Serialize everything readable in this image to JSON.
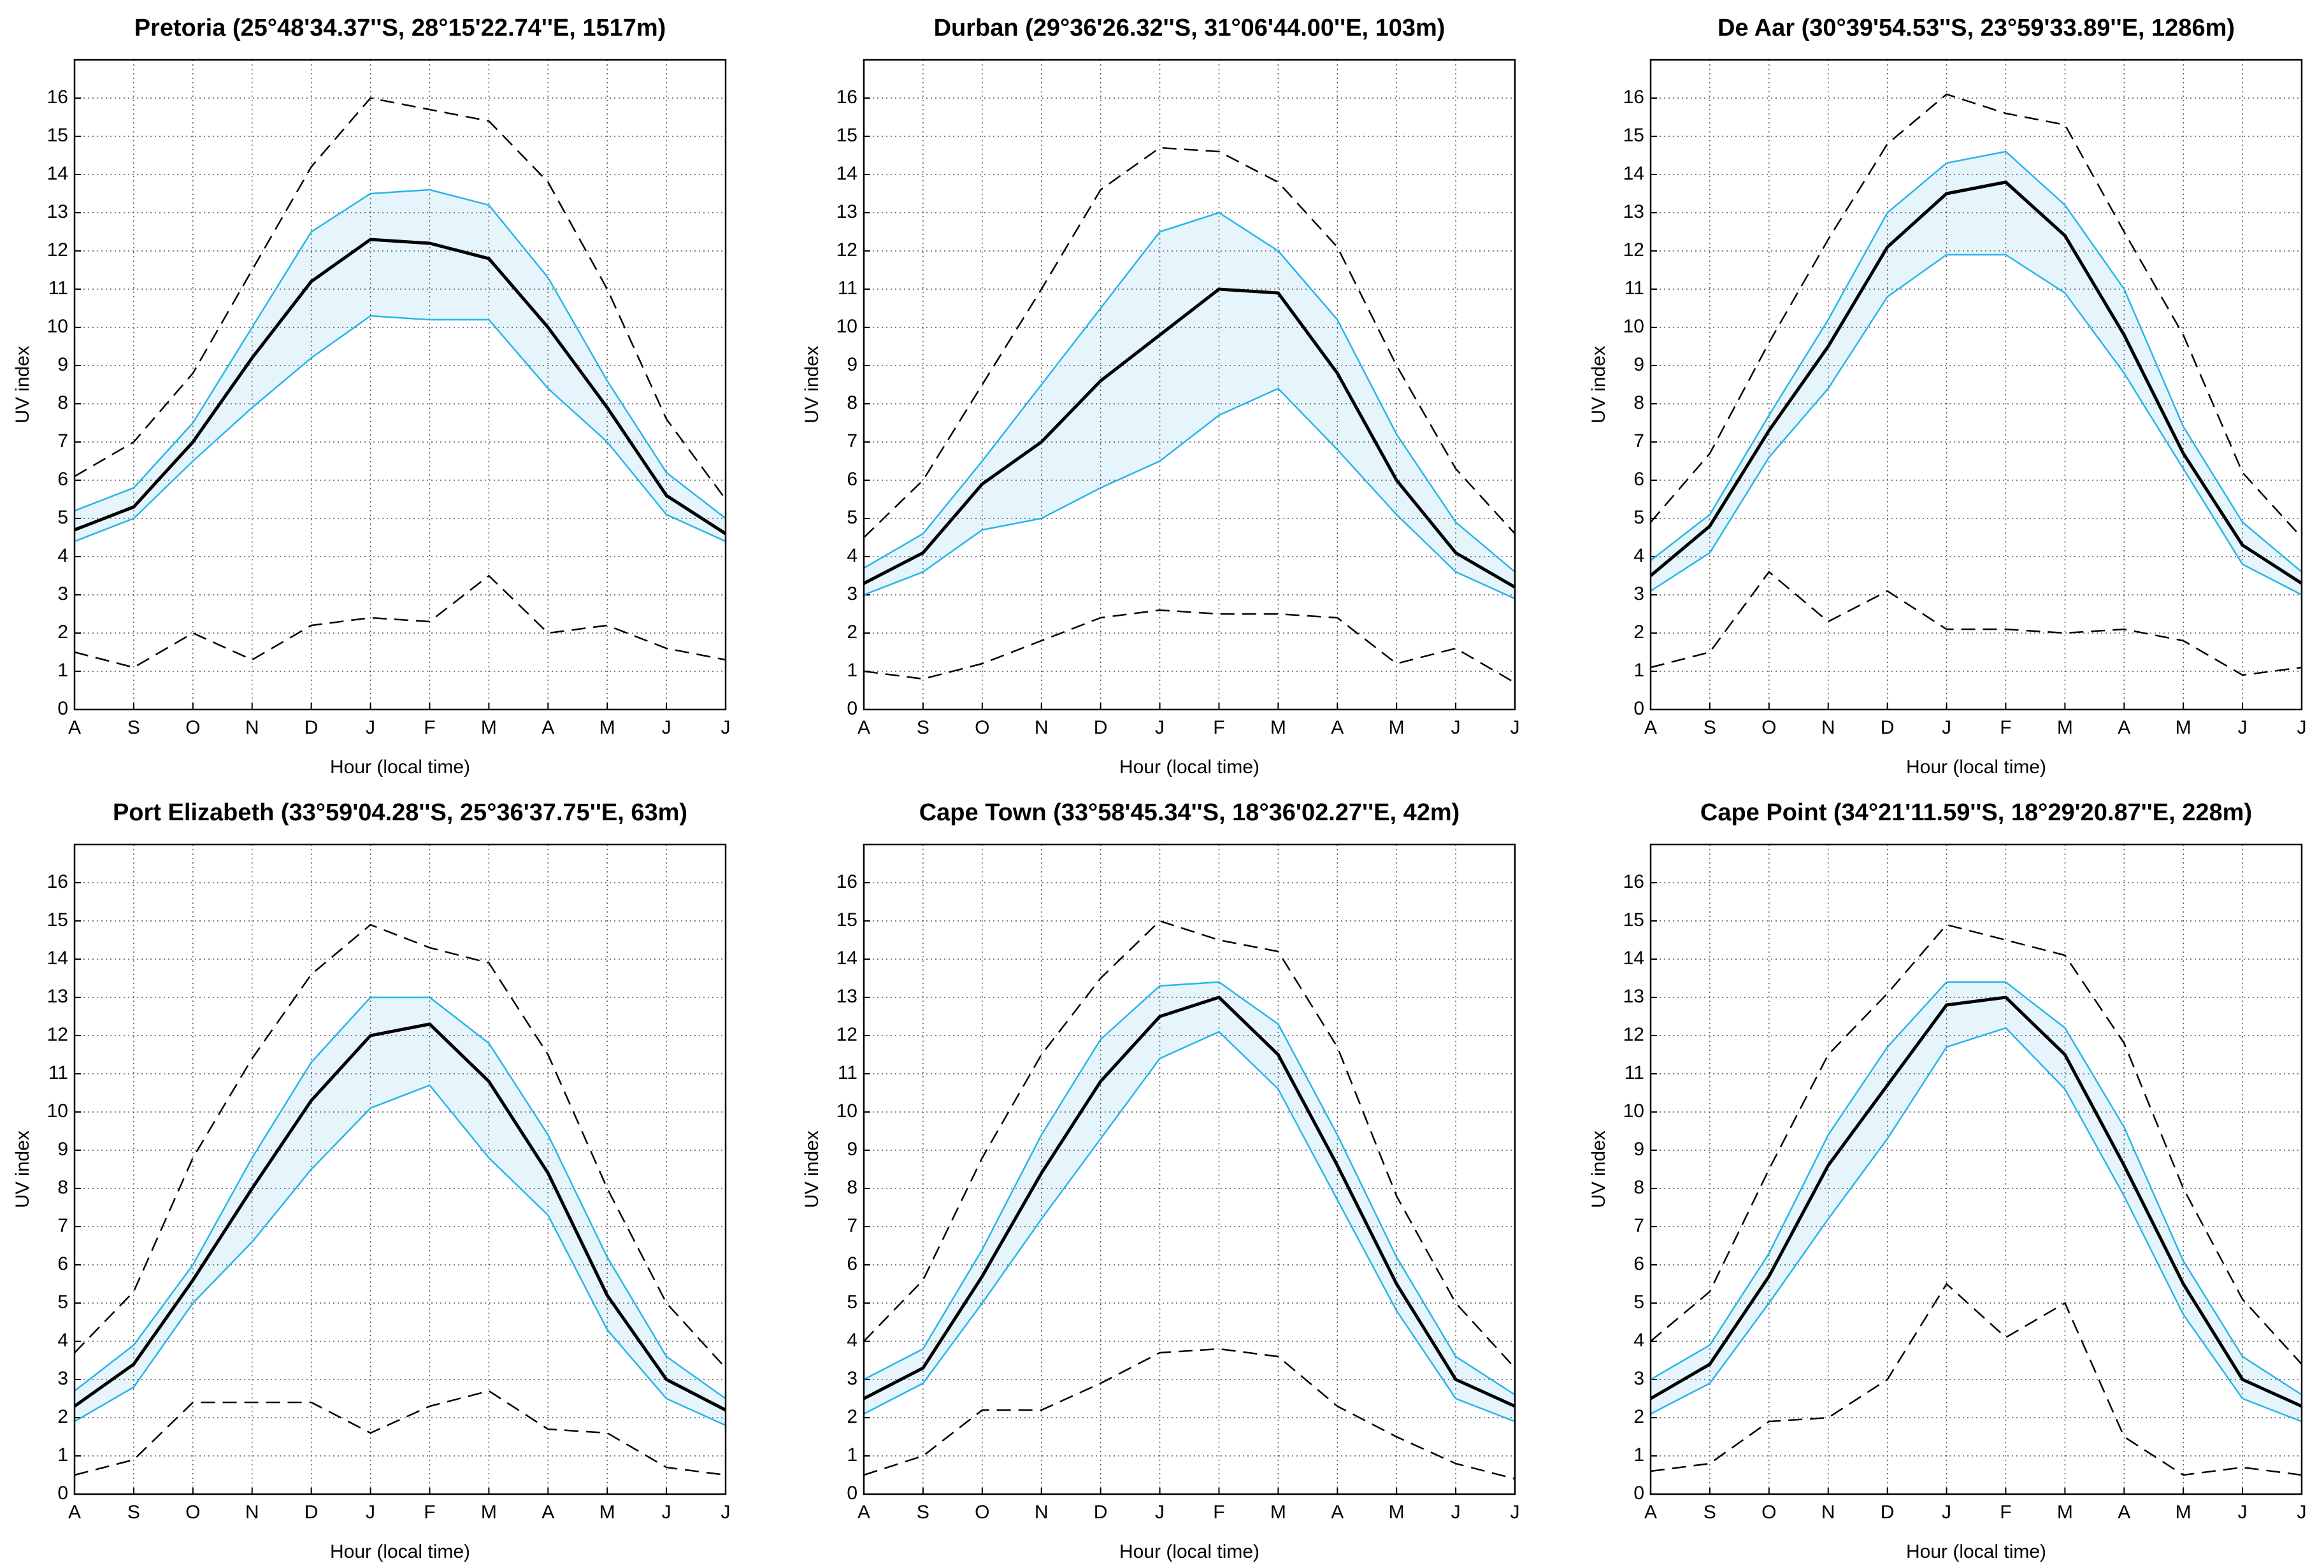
{
  "chart_data": [
    {
      "type": "line",
      "title": "Pretoria (25°48'34.37''S, 28°15'22.74''E, 1517m)",
      "x_label": "Hour (local time)",
      "y_label": "UV index",
      "categories": [
        "A",
        "S",
        "O",
        "N",
        "D",
        "J",
        "F",
        "M",
        "A",
        "M",
        "J",
        "J"
      ],
      "ylim": [
        0,
        17
      ],
      "yticks": [
        0,
        1,
        2,
        3,
        4,
        5,
        6,
        7,
        8,
        9,
        10,
        11,
        12,
        13,
        14,
        15,
        16
      ],
      "grid": true,
      "band": [
        1,
        3
      ],
      "band_color": "#e6f5fc",
      "series": [
        {
          "color": "#000000",
          "style": "dashed",
          "values": [
            6.1,
            7.0,
            8.8,
            11.5,
            14.2,
            16.0,
            15.7,
            15.4,
            13.8,
            11.0,
            7.6,
            5.5
          ]
        },
        {
          "color": "#29b5e8",
          "style": "solid",
          "values": [
            5.2,
            5.8,
            7.5,
            10.0,
            12.5,
            13.5,
            13.6,
            13.2,
            11.3,
            8.6,
            6.2,
            5.0
          ]
        },
        {
          "color": "#000000",
          "style": "bold",
          "values": [
            4.7,
            5.3,
            7.0,
            9.2,
            11.2,
            12.3,
            12.2,
            11.8,
            10.0,
            7.9,
            5.6,
            4.6
          ]
        },
        {
          "color": "#29b5e8",
          "style": "solid",
          "values": [
            4.4,
            5.0,
            6.5,
            7.9,
            9.2,
            10.3,
            10.2,
            10.2,
            8.4,
            7.0,
            5.1,
            4.4
          ]
        },
        {
          "color": "#000000",
          "style": "dashed",
          "values": [
            1.5,
            1.1,
            2.0,
            1.3,
            2.2,
            2.4,
            2.3,
            3.5,
            2.0,
            2.2,
            1.6,
            1.3
          ]
        }
      ]
    },
    {
      "type": "line",
      "title": "Durban (29°36'26.32''S, 31°06'44.00''E, 103m)",
      "x_label": "Hour (local time)",
      "y_label": "UV index",
      "categories": [
        "A",
        "S",
        "O",
        "N",
        "D",
        "J",
        "F",
        "M",
        "A",
        "M",
        "J",
        "J"
      ],
      "ylim": [
        0,
        17
      ],
      "yticks": [
        0,
        1,
        2,
        3,
        4,
        5,
        6,
        7,
        8,
        9,
        10,
        11,
        12,
        13,
        14,
        15,
        16
      ],
      "grid": true,
      "band": [
        1,
        3
      ],
      "band_color": "#e6f5fc",
      "series": [
        {
          "color": "#000000",
          "style": "dashed",
          "values": [
            4.5,
            6.0,
            8.5,
            11.0,
            13.6,
            14.7,
            14.6,
            13.8,
            12.1,
            9.0,
            6.3,
            4.6
          ]
        },
        {
          "color": "#29b5e8",
          "style": "solid",
          "values": [
            3.7,
            4.6,
            6.5,
            8.5,
            10.5,
            12.5,
            13.0,
            12.0,
            10.2,
            7.2,
            4.9,
            3.6
          ]
        },
        {
          "color": "#000000",
          "style": "bold",
          "values": [
            3.3,
            4.1,
            5.9,
            7.0,
            8.6,
            9.8,
            11.0,
            10.9,
            8.8,
            6.0,
            4.1,
            3.2
          ]
        },
        {
          "color": "#29b5e8",
          "style": "solid",
          "values": [
            3.0,
            3.6,
            4.7,
            5.0,
            5.8,
            6.5,
            7.7,
            8.4,
            6.8,
            5.1,
            3.6,
            2.9
          ]
        },
        {
          "color": "#000000",
          "style": "dashed",
          "values": [
            1.0,
            0.8,
            1.2,
            1.8,
            2.4,
            2.6,
            2.5,
            2.5,
            2.4,
            1.2,
            1.6,
            0.7
          ]
        }
      ]
    },
    {
      "type": "line",
      "title": "De Aar (30°39'54.53''S, 23°59'33.89''E, 1286m)",
      "x_label": "Hour (local time)",
      "y_label": "UV index",
      "categories": [
        "A",
        "S",
        "O",
        "N",
        "D",
        "J",
        "F",
        "M",
        "A",
        "M",
        "J",
        "J"
      ],
      "ylim": [
        0,
        17
      ],
      "yticks": [
        0,
        1,
        2,
        3,
        4,
        5,
        6,
        7,
        8,
        9,
        10,
        11,
        12,
        13,
        14,
        15,
        16
      ],
      "grid": true,
      "band": [
        1,
        3
      ],
      "band_color": "#e6f5fc",
      "series": [
        {
          "color": "#000000",
          "style": "dashed",
          "values": [
            4.9,
            6.7,
            9.6,
            12.3,
            14.8,
            16.1,
            15.6,
            15.3,
            12.5,
            9.8,
            6.2,
            4.5
          ]
        },
        {
          "color": "#29b5e8",
          "style": "solid",
          "values": [
            3.9,
            5.1,
            7.7,
            10.2,
            13.0,
            14.3,
            14.6,
            13.2,
            11.0,
            7.4,
            4.9,
            3.6
          ]
        },
        {
          "color": "#000000",
          "style": "bold",
          "values": [
            3.5,
            4.8,
            7.3,
            9.5,
            12.1,
            13.5,
            13.8,
            12.4,
            9.8,
            6.7,
            4.3,
            3.3
          ]
        },
        {
          "color": "#29b5e8",
          "style": "solid",
          "values": [
            3.1,
            4.1,
            6.6,
            8.4,
            10.8,
            11.9,
            11.9,
            10.9,
            8.8,
            6.3,
            3.8,
            3.0
          ]
        },
        {
          "color": "#000000",
          "style": "dashed",
          "values": [
            1.1,
            1.5,
            3.6,
            2.3,
            3.1,
            2.1,
            2.1,
            2.0,
            2.1,
            1.8,
            0.9,
            1.1
          ]
        }
      ]
    },
    {
      "type": "line",
      "title": "Port Elizabeth (33°59'04.28''S, 25°36'37.75''E, 63m)",
      "x_label": "Hour (local time)",
      "y_label": "UV index",
      "categories": [
        "A",
        "S",
        "O",
        "N",
        "D",
        "J",
        "F",
        "M",
        "A",
        "M",
        "J",
        "J"
      ],
      "ylim": [
        0,
        17
      ],
      "yticks": [
        0,
        1,
        2,
        3,
        4,
        5,
        6,
        7,
        8,
        9,
        10,
        11,
        12,
        13,
        14,
        15,
        16
      ],
      "grid": true,
      "band": [
        1,
        3
      ],
      "band_color": "#e6f5fc",
      "series": [
        {
          "color": "#000000",
          "style": "dashed",
          "values": [
            3.7,
            5.3,
            8.8,
            11.4,
            13.6,
            14.9,
            14.3,
            13.9,
            11.5,
            8.0,
            5.0,
            3.3
          ]
        },
        {
          "color": "#29b5e8",
          "style": "solid",
          "values": [
            2.7,
            3.9,
            6.0,
            8.8,
            11.3,
            13.0,
            13.0,
            11.8,
            9.4,
            6.2,
            3.6,
            2.5
          ]
        },
        {
          "color": "#000000",
          "style": "bold",
          "values": [
            2.3,
            3.4,
            5.6,
            8.0,
            10.3,
            12.0,
            12.3,
            10.8,
            8.4,
            5.2,
            3.0,
            2.2
          ]
        },
        {
          "color": "#29b5e8",
          "style": "solid",
          "values": [
            1.9,
            2.8,
            5.0,
            6.6,
            8.5,
            10.1,
            10.7,
            8.8,
            7.3,
            4.3,
            2.5,
            1.8
          ]
        },
        {
          "color": "#000000",
          "style": "dashed",
          "values": [
            0.5,
            0.9,
            2.4,
            2.4,
            2.4,
            1.6,
            2.3,
            2.7,
            1.7,
            1.6,
            0.7,
            0.5
          ]
        }
      ]
    },
    {
      "type": "line",
      "title": "Cape Town (33°58'45.34''S, 18°36'02.27''E, 42m)",
      "x_label": "Hour (local time)",
      "y_label": "UV index",
      "categories": [
        "A",
        "S",
        "O",
        "N",
        "D",
        "J",
        "F",
        "M",
        "A",
        "M",
        "J",
        "J"
      ],
      "ylim": [
        0,
        17
      ],
      "yticks": [
        0,
        1,
        2,
        3,
        4,
        5,
        6,
        7,
        8,
        9,
        10,
        11,
        12,
        13,
        14,
        15,
        16
      ],
      "grid": true,
      "band": [
        1,
        3
      ],
      "band_color": "#e6f5fc",
      "series": [
        {
          "color": "#000000",
          "style": "dashed",
          "values": [
            4.0,
            5.6,
            8.8,
            11.5,
            13.5,
            15.0,
            14.5,
            14.2,
            11.7,
            7.8,
            5.0,
            3.3
          ]
        },
        {
          "color": "#29b5e8",
          "style": "solid",
          "values": [
            3.0,
            3.8,
            6.4,
            9.4,
            11.9,
            13.3,
            13.4,
            12.3,
            9.4,
            6.2,
            3.6,
            2.6
          ]
        },
        {
          "color": "#000000",
          "style": "bold",
          "values": [
            2.5,
            3.3,
            5.7,
            8.4,
            10.8,
            12.5,
            13.0,
            11.5,
            8.6,
            5.5,
            3.0,
            2.3
          ]
        },
        {
          "color": "#29b5e8",
          "style": "solid",
          "values": [
            2.1,
            2.9,
            5.0,
            7.2,
            9.3,
            11.4,
            12.1,
            10.6,
            7.7,
            4.8,
            2.5,
            1.9
          ]
        },
        {
          "color": "#000000",
          "style": "dashed",
          "values": [
            0.5,
            1.0,
            2.2,
            2.2,
            2.9,
            3.7,
            3.8,
            3.6,
            2.3,
            1.5,
            0.8,
            0.4
          ]
        }
      ]
    },
    {
      "type": "line",
      "title": "Cape Point (34°21'11.59''S, 18°29'20.87''E, 228m)",
      "x_label": "Hour (local time)",
      "y_label": "UV index",
      "categories": [
        "A",
        "S",
        "O",
        "N",
        "D",
        "J",
        "F",
        "M",
        "A",
        "M",
        "J",
        "J"
      ],
      "ylim": [
        0,
        17
      ],
      "yticks": [
        0,
        1,
        2,
        3,
        4,
        5,
        6,
        7,
        8,
        9,
        10,
        11,
        12,
        13,
        14,
        15,
        16
      ],
      "grid": true,
      "band": [
        1,
        3
      ],
      "band_color": "#e6f5fc",
      "series": [
        {
          "color": "#000000",
          "style": "dashed",
          "values": [
            4.0,
            5.3,
            8.5,
            11.5,
            13.1,
            14.9,
            14.5,
            14.1,
            11.8,
            8.0,
            5.1,
            3.4
          ]
        },
        {
          "color": "#29b5e8",
          "style": "solid",
          "values": [
            3.0,
            3.9,
            6.3,
            9.4,
            11.7,
            13.4,
            13.4,
            12.2,
            9.6,
            6.1,
            3.6,
            2.6
          ]
        },
        {
          "color": "#000000",
          "style": "bold",
          "values": [
            2.5,
            3.4,
            5.7,
            8.6,
            10.7,
            12.8,
            13.0,
            11.5,
            8.6,
            5.5,
            3.0,
            2.3
          ]
        },
        {
          "color": "#29b5e8",
          "style": "solid",
          "values": [
            2.1,
            2.9,
            5.0,
            7.2,
            9.3,
            11.7,
            12.2,
            10.6,
            7.8,
            4.7,
            2.5,
            1.9
          ]
        },
        {
          "color": "#000000",
          "style": "dashed",
          "values": [
            0.6,
            0.8,
            1.9,
            2.0,
            3.0,
            5.5,
            4.1,
            5.0,
            1.5,
            0.5,
            0.7,
            0.5
          ]
        }
      ]
    }
  ]
}
